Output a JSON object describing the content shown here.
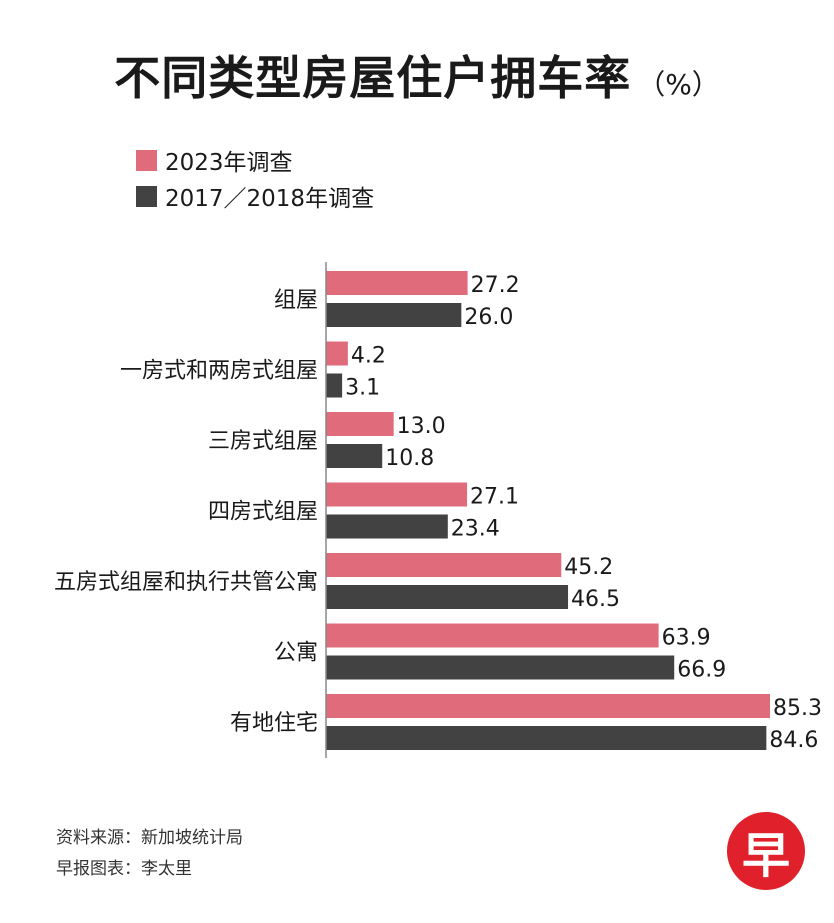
{
  "title": "不同类型房屋住户拥车率",
  "title_unit": "（%）",
  "colors": {
    "series_2023": "#e06b7b",
    "series_2017": "#424242"
  },
  "chart_data": {
    "type": "bar",
    "orientation": "horizontal",
    "categories": [
      "组屋",
      "一房式和两房式组屋",
      "三房式组屋",
      "四房式组屋",
      "五房式组屋和执行共管公寓",
      "公寓",
      "有地住宅"
    ],
    "series": [
      {
        "name": "2023年调查",
        "values": [
          27.2,
          4.2,
          13.0,
          27.1,
          45.2,
          63.9,
          85.3
        ]
      },
      {
        "name": "2017／2018年调查",
        "values": [
          26.0,
          3.1,
          10.8,
          23.4,
          46.5,
          66.9,
          84.6
        ]
      }
    ],
    "xlim": [
      0,
      85.3
    ],
    "grid": false,
    "legend_position": "top-left"
  },
  "footer": {
    "source": "资料来源：新加坡统计局",
    "credit": "早报图表：李太里"
  },
  "logo_text": "早"
}
